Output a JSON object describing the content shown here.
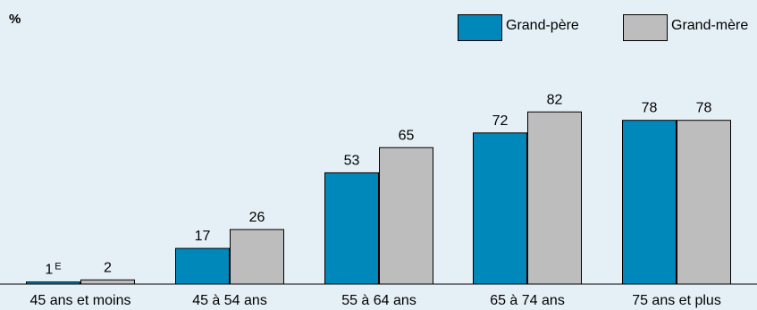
{
  "unit_label": "%",
  "colors": {
    "series_1": "#0088bb",
    "series_2": "#bdbdbd",
    "background": "#e5f0f6"
  },
  "chart_data": {
    "type": "bar",
    "categories": [
      "45 ans et moins",
      "45 à 54 ans",
      "55 à 64 ans",
      "65 à 74 ans",
      "75 ans et plus"
    ],
    "series": [
      {
        "name": "Grand-père",
        "values": [
          1,
          17,
          53,
          72,
          78
        ],
        "labels": [
          "1",
          "17",
          "53",
          "72",
          "78"
        ],
        "label_notes": [
          "E",
          "",
          "",
          "",
          ""
        ]
      },
      {
        "name": "Grand-mère",
        "values": [
          2,
          26,
          65,
          82,
          78
        ],
        "labels": [
          "2",
          "26",
          "65",
          "82",
          "78"
        ],
        "label_notes": [
          "",
          "",
          "",
          "",
          ""
        ]
      }
    ],
    "ylabel": "%",
    "ylim": [
      0,
      100
    ],
    "grid": false,
    "legend": "top-right"
  }
}
